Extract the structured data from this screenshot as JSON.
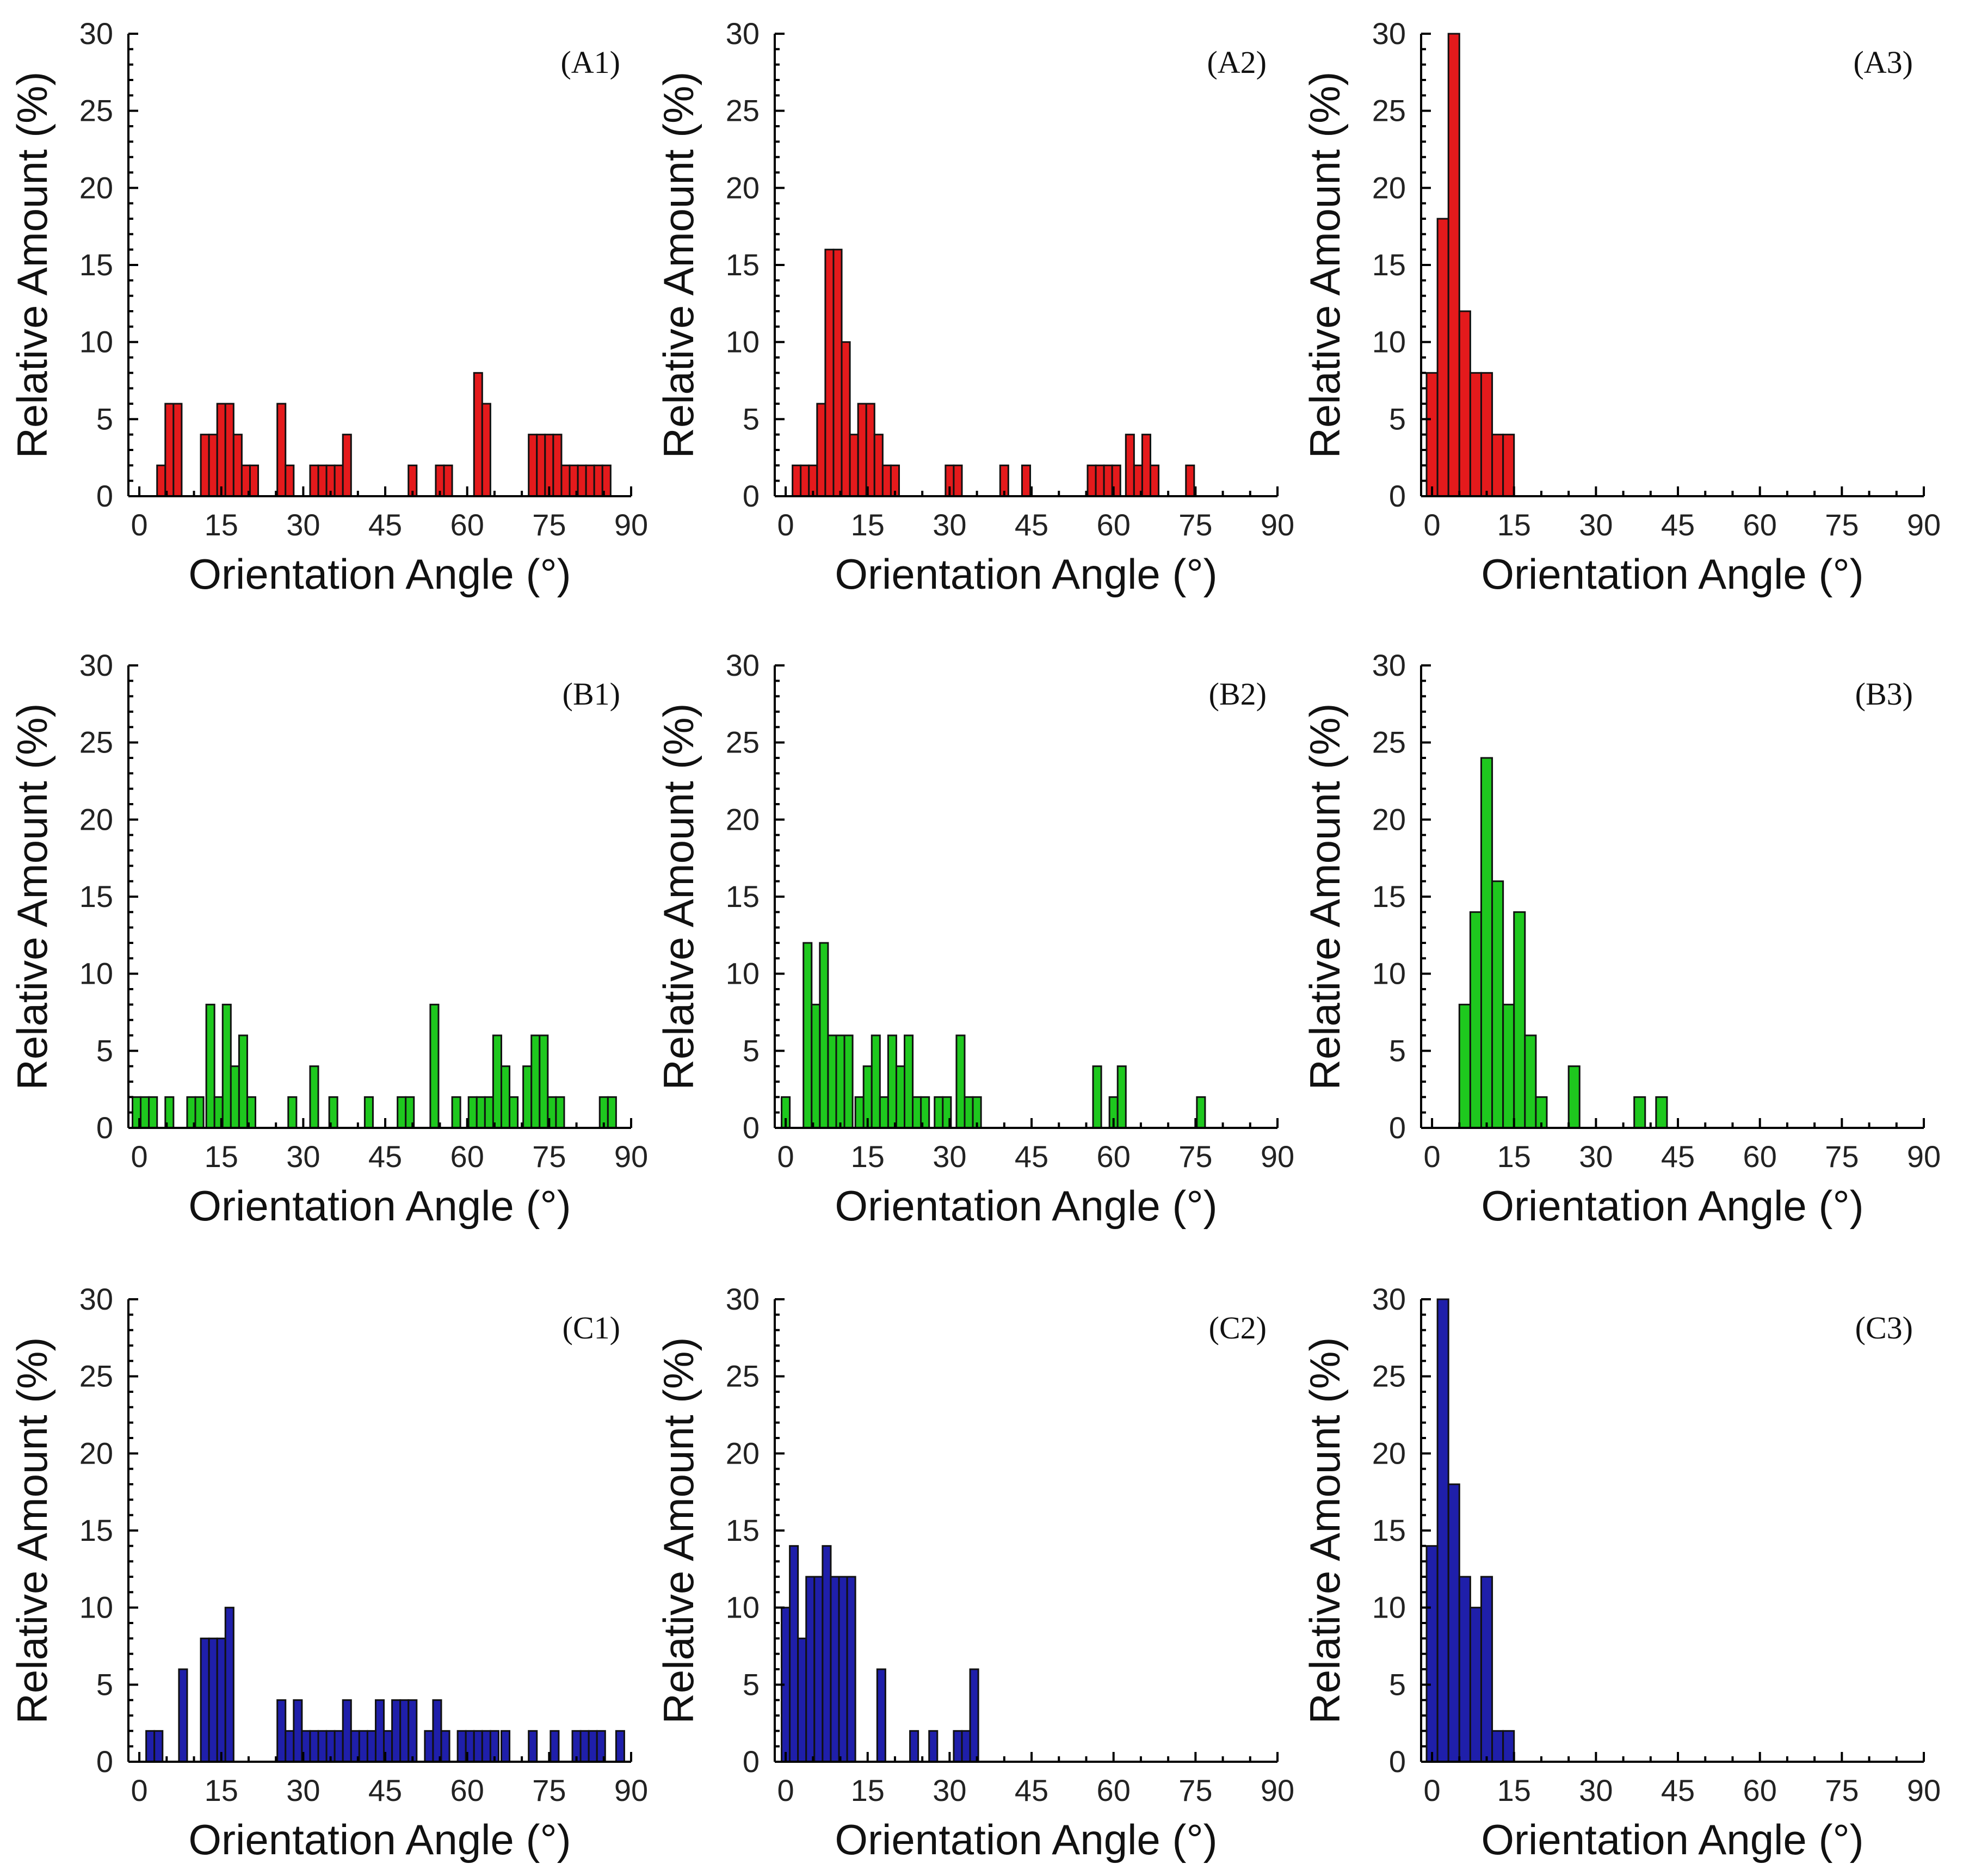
{
  "figure": {
    "colors": {
      "red": "#e41a1c",
      "green": "#1ec81e",
      "blue": "#1f1faa"
    }
  },
  "chart_data": [
    {
      "type": "bar",
      "panel": "(A1)",
      "color": "red",
      "xlabel": "Orientation Angle (°)",
      "ylabel": "Relative Amount (%)",
      "xlim": [
        -2,
        90
      ],
      "ylim": [
        0,
        30
      ],
      "xticks": [
        0,
        15,
        30,
        45,
        60,
        75,
        90
      ],
      "yticks": [
        0,
        5,
        10,
        15,
        20,
        25,
        30
      ],
      "bin_width": 1.5,
      "x": [
        4,
        5.5,
        7,
        12,
        13.5,
        15,
        16.5,
        18,
        19.5,
        21,
        26,
        27.5,
        32,
        33.5,
        35,
        36.5,
        38,
        50,
        55,
        56.5,
        62,
        63.5,
        72,
        73.5,
        75,
        76.5,
        78,
        79.5,
        81,
        82.5,
        84,
        85.5
      ],
      "values": [
        2,
        6,
        6,
        4,
        4,
        6,
        6,
        4,
        2,
        2,
        6,
        2,
        2,
        2,
        2,
        2,
        4,
        2,
        2,
        2,
        8,
        6,
        4,
        4,
        4,
        4,
        2,
        2,
        2,
        2,
        2,
        2
      ]
    },
    {
      "type": "bar",
      "panel": "(A2)",
      "color": "red",
      "xlabel": "Orientation Angle (°)",
      "ylabel": "Relative Amount (%)",
      "xlim": [
        -2,
        90
      ],
      "ylim": [
        0,
        30
      ],
      "xticks": [
        0,
        15,
        30,
        45,
        60,
        75,
        90
      ],
      "yticks": [
        0,
        5,
        10,
        15,
        20,
        25,
        30
      ],
      "bin_width": 1.5,
      "x": [
        2,
        3.5,
        5,
        6.5,
        8,
        9.5,
        11,
        12.5,
        14,
        15.5,
        17,
        18.5,
        20,
        30,
        31.5,
        40,
        44,
        56,
        57.5,
        59,
        60.5,
        63,
        64.5,
        66,
        67.5,
        74
      ],
      "values": [
        2,
        2,
        2,
        6,
        16,
        16,
        10,
        4,
        6,
        6,
        4,
        2,
        2,
        2,
        2,
        2,
        2,
        2,
        2,
        2,
        2,
        4,
        2,
        4,
        2,
        2
      ]
    },
    {
      "type": "bar",
      "panel": "(A3)",
      "color": "red",
      "xlabel": "Orientation Angle (°)",
      "ylabel": "Relative Amount (%)",
      "xlim": [
        -2,
        90
      ],
      "ylim": [
        0,
        30
      ],
      "xticks": [
        0,
        15,
        30,
        45,
        60,
        75,
        90
      ],
      "yticks": [
        0,
        5,
        10,
        15,
        20,
        25,
        30
      ],
      "bin_width": 2,
      "x": [
        0,
        2,
        4,
        6,
        8,
        10,
        12,
        14
      ],
      "values": [
        8,
        18,
        30,
        12,
        8,
        8,
        4,
        4
      ]
    },
    {
      "type": "bar",
      "panel": "(B1)",
      "color": "green",
      "xlabel": "Orientation Angle (°)",
      "ylabel": "Relative Amount (%)",
      "xlim": [
        -2,
        90
      ],
      "ylim": [
        0,
        30
      ],
      "xticks": [
        0,
        15,
        30,
        45,
        60,
        75,
        90
      ],
      "yticks": [
        0,
        5,
        10,
        15,
        20,
        25,
        30
      ],
      "bin_width": 1.5,
      "x": [
        -0.5,
        1,
        2.5,
        5.5,
        9.5,
        11,
        13,
        14.5,
        16,
        17.5,
        19,
        20.5,
        28,
        32,
        35.5,
        42,
        48,
        49.5,
        54,
        58,
        61,
        62.5,
        64,
        65.5,
        67,
        68.5,
        71,
        72.5,
        74,
        75.5,
        77,
        85,
        86.5
      ],
      "values": [
        2,
        2,
        2,
        2,
        2,
        2,
        8,
        2,
        8,
        4,
        6,
        2,
        2,
        4,
        2,
        2,
        2,
        2,
        8,
        2,
        2,
        2,
        2,
        6,
        4,
        2,
        4,
        6,
        6,
        2,
        2,
        2,
        2
      ]
    },
    {
      "type": "bar",
      "panel": "(B2)",
      "color": "green",
      "xlabel": "Orientation Angle (°)",
      "ylabel": "Relative Amount (%)",
      "xlim": [
        -2,
        90
      ],
      "ylim": [
        0,
        30
      ],
      "xticks": [
        0,
        15,
        30,
        45,
        60,
        75,
        90
      ],
      "yticks": [
        0,
        5,
        10,
        15,
        20,
        25,
        30
      ],
      "bin_width": 1.5,
      "x": [
        0,
        4,
        5.5,
        7,
        8.5,
        10,
        11.5,
        13.5,
        15,
        16.5,
        18,
        19.5,
        21,
        22.5,
        24,
        25.5,
        28,
        29.5,
        32,
        33.5,
        35,
        57,
        60,
        61.5,
        76
      ],
      "values": [
        2,
        12,
        8,
        12,
        6,
        6,
        6,
        2,
        4,
        6,
        2,
        6,
        4,
        6,
        2,
        2,
        2,
        2,
        6,
        2,
        2,
        4,
        2,
        4,
        2
      ]
    },
    {
      "type": "bar",
      "panel": "(B3)",
      "color": "green",
      "xlabel": "Orientation Angle (°)",
      "ylabel": "Relative Amount (%)",
      "xlim": [
        -2,
        90
      ],
      "ylim": [
        0,
        30
      ],
      "xticks": [
        0,
        15,
        30,
        45,
        60,
        75,
        90
      ],
      "yticks": [
        0,
        5,
        10,
        15,
        20,
        25,
        30
      ],
      "bin_width": 2,
      "x": [
        6,
        8,
        10,
        12,
        14,
        16,
        18,
        20,
        26,
        38,
        42
      ],
      "values": [
        8,
        14,
        24,
        16,
        8,
        14,
        6,
        2,
        4,
        2,
        2
      ]
    },
    {
      "type": "bar",
      "panel": "(C1)",
      "color": "blue",
      "xlabel": "Orientation Angle (°)",
      "ylabel": "Relative Amount (%)",
      "xlim": [
        -2,
        90
      ],
      "ylim": [
        0,
        30
      ],
      "xticks": [
        0,
        15,
        30,
        45,
        60,
        75,
        90
      ],
      "yticks": [
        0,
        5,
        10,
        15,
        20,
        25,
        30
      ],
      "bin_width": 1.5,
      "x": [
        2,
        3.5,
        8,
        12,
        13.5,
        15,
        16.5,
        26,
        27.5,
        29,
        30.5,
        32,
        33.5,
        35,
        36.5,
        38,
        39.5,
        41,
        42.5,
        44,
        45.5,
        47,
        48.5,
        50,
        53,
        54.5,
        56,
        59,
        60.5,
        62,
        63.5,
        65,
        67,
        72,
        76,
        80,
        81.5,
        83,
        84.5,
        88
      ],
      "values": [
        2,
        2,
        6,
        8,
        8,
        8,
        10,
        4,
        2,
        4,
        2,
        2,
        2,
        2,
        2,
        4,
        2,
        2,
        2,
        4,
        2,
        4,
        4,
        4,
        2,
        4,
        2,
        2,
        2,
        2,
        2,
        2,
        2,
        2,
        2,
        2,
        2,
        2,
        2,
        2
      ]
    },
    {
      "type": "bar",
      "panel": "(C2)",
      "color": "blue",
      "xlabel": "Orientation Angle (°)",
      "ylabel": "Relative Amount (%)",
      "xlim": [
        -2,
        90
      ],
      "ylim": [
        0,
        30
      ],
      "xticks": [
        0,
        15,
        30,
        45,
        60,
        75,
        90
      ],
      "yticks": [
        0,
        5,
        10,
        15,
        20,
        25,
        30
      ],
      "bin_width": 1.5,
      "x": [
        0,
        1.5,
        3,
        4.5,
        6,
        7.5,
        9,
        10.5,
        12,
        17.5,
        23.5,
        27,
        31.5,
        33,
        34.5
      ],
      "values": [
        10,
        14,
        8,
        12,
        12,
        14,
        12,
        12,
        12,
        6,
        2,
        2,
        2,
        2,
        6
      ]
    },
    {
      "type": "bar",
      "panel": "(C3)",
      "color": "blue",
      "xlabel": "Orientation Angle (°)",
      "ylabel": "Relative Amount (%)",
      "xlim": [
        -2,
        90
      ],
      "ylim": [
        0,
        30
      ],
      "xticks": [
        0,
        15,
        30,
        45,
        60,
        75,
        90
      ],
      "yticks": [
        0,
        5,
        10,
        15,
        20,
        25,
        30
      ],
      "bin_width": 2,
      "x": [
        0,
        2,
        4,
        6,
        8,
        10,
        12,
        14
      ],
      "values": [
        14,
        30,
        18,
        12,
        10,
        12,
        2,
        2
      ]
    }
  ]
}
